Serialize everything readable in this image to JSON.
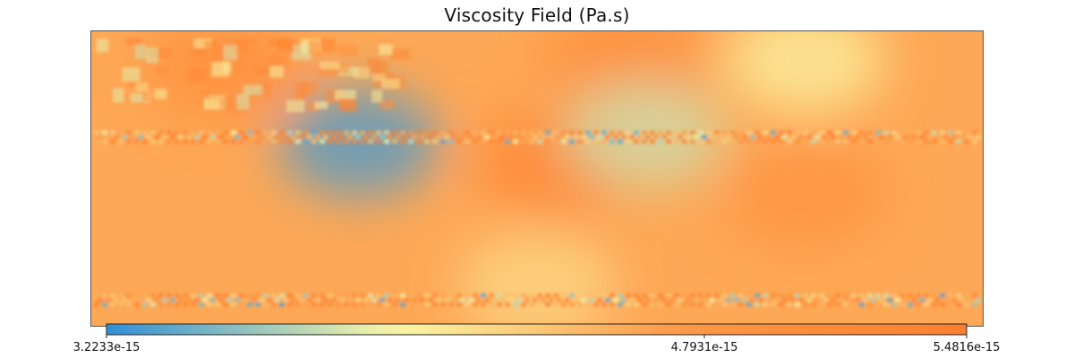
{
  "chart_data": {
    "type": "heatmap",
    "title": "Viscosity Field (Pa.s)",
    "xlabel": "",
    "ylabel": "",
    "grid": false,
    "colormap": {
      "name": "blue-yellow-orange",
      "stops": [
        "#2f8fd6",
        "#fbf8a6",
        "#fd9846",
        "#fe7f2e"
      ]
    },
    "colorbar": {
      "orientation": "horizontal",
      "placement": "bottom",
      "vmin": 3.2233e-15,
      "vmax": 5.4816e-15,
      "ticks": [
        {
          "value": 3.2233e-15,
          "label": "3.2233e-15"
        },
        {
          "value": 4.7931e-15,
          "label": "4.7931e-15"
        },
        {
          "value": 5.4816e-15,
          "label": "5.4816e-15"
        }
      ]
    },
    "field_base_value": 4.6e-15,
    "high_value_zones": [
      {
        "x": 0.52,
        "y": 0.45,
        "value": 5.3e-15
      },
      {
        "x": 0.15,
        "y": 0.12,
        "value": 5e-15
      },
      {
        "x": 0.6,
        "y": 0.08,
        "value": 5.1e-15
      },
      {
        "x": 0.8,
        "y": 0.55,
        "value": 4.9e-15
      }
    ],
    "low_value_zones": [
      {
        "x": 0.3,
        "y": 0.38,
        "value": 3.3e-15
      },
      {
        "x": 0.5,
        "y": 0.86,
        "value": 4.2e-15
      },
      {
        "x": 0.62,
        "y": 0.35,
        "value": 3.8e-15
      },
      {
        "x": 0.8,
        "y": 0.1,
        "value": 4e-15
      }
    ],
    "fluctuation_bands": [
      {
        "y": 0.36,
        "amplitude": 1.0
      },
      {
        "y": 0.91,
        "amplitude": 0.9
      }
    ]
  }
}
